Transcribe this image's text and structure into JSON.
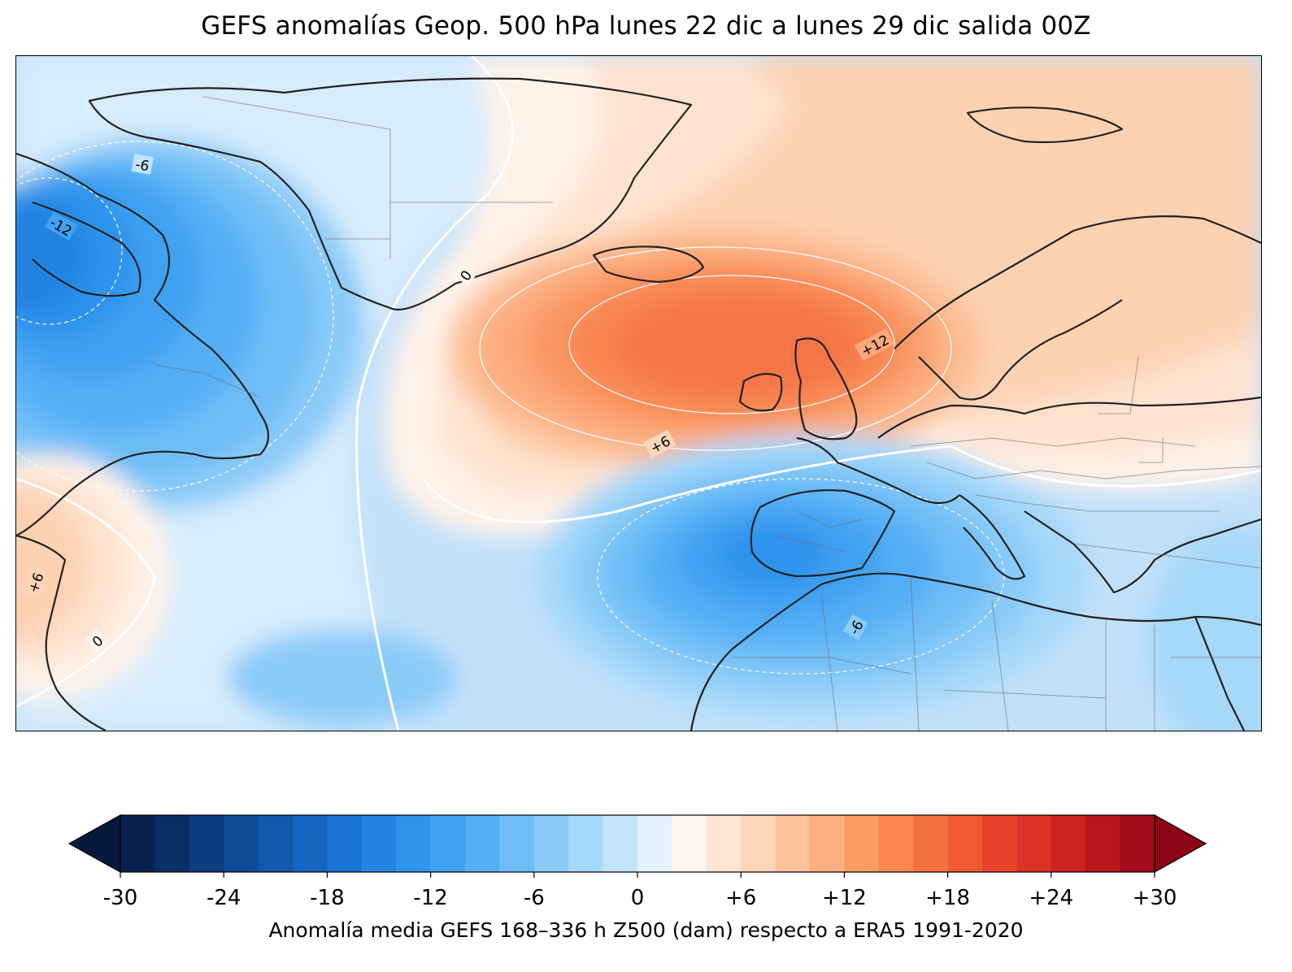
{
  "title": "GEFS anomalías Geop. 500 hPa lunes 22 dic a lunes 29 dic salida 00Z",
  "colorbar": {
    "min": -30,
    "max": 30,
    "step": 2,
    "extend": "both",
    "caption": "Anomalía media GEFS 168–336 h Z500 (dam) respecto a ERA5 1991-2020",
    "ticks": [
      "-30",
      "-24",
      "-18",
      "-12",
      "-6",
      "0",
      "+6",
      "+12",
      "+18",
      "+24",
      "+30"
    ],
    "colors": [
      "#08224f",
      "#0a2f66",
      "#0d3d7f",
      "#0f4a97",
      "#1258ad",
      "#1566c1",
      "#1a75d4",
      "#2384e2",
      "#2f93ec",
      "#40a1f2",
      "#55aff5",
      "#6ebdf7",
      "#8acbf8",
      "#a6d8f9",
      "#c2e4fb",
      "#e4f2fd",
      "#fff6ee",
      "#fee6d4",
      "#fdd5b8",
      "#fcc39c",
      "#fbb07f",
      "#fa9c64",
      "#f8864e",
      "#f5703f",
      "#f05a33",
      "#e7452b",
      "#dc3326",
      "#cc2322",
      "#b9161e",
      "#a10b1b"
    ],
    "under_color": "#061a3e",
    "over_color": "#8c0618"
  },
  "contour_labels": {
    "greenland_zero": "0",
    "labrador_minus6": "-6",
    "canada_low": "-12",
    "north_sea_plus12": "+12",
    "atlantic_plus6": "+6",
    "us_plus6": "+6",
    "us_zero": "0",
    "africa_minus6": "-6"
  }
}
